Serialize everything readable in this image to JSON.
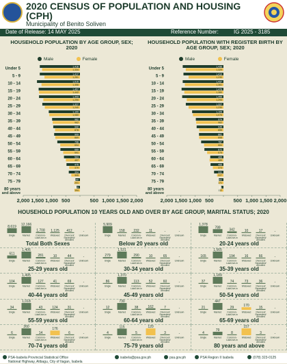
{
  "header": {
    "title": "2020 CENSUS OF POPULATION AND HOUSING (CPH)",
    "subtitle": "Municipality of  Benito Soliven",
    "release_label": "Date of Release: 14 MAY 2025",
    "reference_label": "Reference Number:",
    "reference_number": "IG 2025 - 3185"
  },
  "colors": {
    "male": "#1f3d2b",
    "female": "#f2c14e",
    "accent": "#1f4a36",
    "background": "#ece8d6"
  },
  "legend": {
    "male": "Male",
    "female": "Female"
  },
  "chart_data": [
    {
      "type": "bar",
      "orientation": "population-pyramid",
      "title": "HOUSEHOLD POPULATION BY AGE GROUP, SEX; 2020",
      "categories": [
        "Under 5",
        "5 - 9",
        "10 - 14",
        "15 - 19",
        "20 - 24",
        "25 - 29",
        "30 - 34",
        "35 - 39",
        "40 - 44",
        "45 - 49",
        "50 - 54",
        "55 - 59",
        "60 - 64",
        "65 - 69",
        "70 - 74",
        "75 - 79",
        "80 years and above"
      ],
      "series": [
        {
          "name": "Male",
          "values": [
            1416,
            1417,
            1515,
            1457,
            1443,
            1327,
            1100,
            982,
            942,
            909,
            798,
            689,
            563,
            475,
            394,
            160,
            119
          ]
        },
        {
          "name": "Female",
          "values": [
            1334,
            1251,
            1356,
            1442,
            1290,
            1240,
            1080,
            962,
            878,
            869,
            694,
            591,
            497,
            379,
            305,
            201,
            194
          ]
        }
      ],
      "xlim": [
        -2000,
        2000
      ],
      "xticks": [
        "2,000",
        "1,500",
        "1,000",
        "500",
        "",
        "500",
        "1,000",
        "1,500",
        "2,000"
      ]
    },
    {
      "type": "bar",
      "orientation": "population-pyramid",
      "title": "HOUSEHOLD POPULATION WITH REGISTER BIRTH BY AGE GROUP, SEX; 2020",
      "categories": [
        "Under 5",
        "5 - 9",
        "10 - 14",
        "15 - 19",
        "20 - 24",
        "25 - 29",
        "30 - 34",
        "35 - 39",
        "40 - 44",
        "45 - 49",
        "50 - 54",
        "55 - 59",
        "60 - 64",
        "65 - 69",
        "70 - 74",
        "75 - 79",
        "80 years and above"
      ],
      "series": [
        {
          "name": "Male",
          "values": [
            1436,
            1410,
            1437,
            1476,
            1455,
            1327,
            1105,
            974,
            945,
            861,
            787,
            672,
            465,
            455,
            331,
            162,
            81
          ]
        },
        {
          "name": "Female",
          "values": [
            1329,
            1230,
            1361,
            1380,
            1293,
            1230,
            1076,
            962,
            855,
            858,
            684,
            575,
            489,
            373,
            227,
            171,
            112
          ]
        }
      ],
      "xlim": [
        -2000,
        2000
      ],
      "xticks": [
        "2,000",
        "1,500",
        "1,000",
        "500",
        "",
        "500",
        "1,000",
        "1,500",
        "2,000"
      ]
    },
    {
      "type": "bar",
      "title": "HOUSEHOLD POPULATION 10 YEARS OLD AND OVER BY AGE GROUP, MARITAL STATUS; 2020",
      "categories": [
        "Single",
        "Married",
        "Common-Law/Live-in",
        "Widowed",
        "Divorced/Separated/Annulled",
        "Unknown"
      ],
      "panels": [
        {
          "label": "Total Both Sexes",
          "values": [
            8619,
            12166,
            1708,
            1125,
            412,
            null
          ]
        },
        {
          "label": "Below 20 years old",
          "values": [
            5909,
            158,
            232,
            11,
            null,
            null
          ]
        },
        {
          "label": "20-24 years old",
          "values": [
            1378,
            788,
            342,
            10,
            17,
            null
          ]
        },
        {
          "label": "25-29 years old",
          "values": [
            611,
            1406,
            281,
            10,
            44,
            null
          ]
        },
        {
          "label": "30-34 years old",
          "values": [
            279,
            1531,
            290,
            10,
            65,
            null
          ]
        },
        {
          "label": "35-39 years old",
          "values": [
            165,
            1565,
            194,
            16,
            66,
            null
          ]
        },
        {
          "label": "40-44 years old",
          "values": [
            104,
            1495,
            127,
            41,
            69,
            null
          ]
        },
        {
          "label": "45-49 years old",
          "values": [
            86,
            1370,
            113,
            52,
            60,
            null
          ]
        },
        {
          "label": "50-54 years old",
          "values": [
            37,
            1189,
            74,
            73,
            36,
            null
          ]
        },
        {
          "label": "55-59 years old",
          "values": [
            34,
            1018,
            43,
            124,
            31,
            null
          ]
        },
        {
          "label": "60-64 years old",
          "values": [
            12,
            730,
            38,
            162,
            7,
            null
          ]
        },
        {
          "label": "65-69 years old",
          "values": [
            21,
            447,
            29,
            170,
            15,
            null
          ]
        },
        {
          "label": "70-74 years old",
          "values": [
            6,
            260,
            14,
            176,
            6,
            null
          ]
        },
        {
          "label": "75-79 years old",
          "values": [
            4,
            115,
            5,
            120,
            3,
            null
          ]
        },
        {
          "label": "80 years and above",
          "values": [
            4,
            79,
            8,
            157,
            3,
            null
          ]
        }
      ]
    }
  ],
  "footer": {
    "office": "PSA-Isabela Provincial Statistical Office",
    "address": "National Highway, Alibagu, City of Ilagan, Isabela",
    "email": "isabela@psa.gov.ph",
    "web": "psa.gov.ph",
    "facebook": "PSA Region II Isabela",
    "phone": "(078) 323-0125"
  }
}
